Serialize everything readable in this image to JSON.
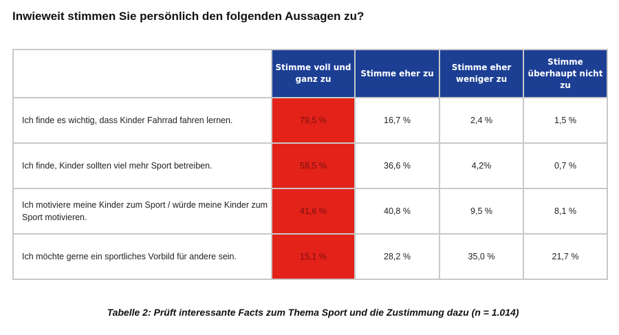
{
  "title": "Inwieweit stimmen Sie persönlich den folgenden Aussagen zu?",
  "columns": [
    "Stimme voll und ganz zu",
    "Stimme eher zu",
    "Stimme eher weniger zu",
    "Stimme überhaupt nicht zu"
  ],
  "rows": [
    {
      "statement": "Ich finde es wichtig, dass Kinder Fahrrad fahren lernen.",
      "values": [
        "79,5 %",
        "16,7 %",
        "2,4 %",
        "1,5 %"
      ]
    },
    {
      "statement": "Ich finde, Kinder sollten viel mehr Sport betreiben.",
      "values": [
        "58,5 %",
        "36,6 %",
        "4,2%",
        "0,7 %"
      ]
    },
    {
      "statement": "Ich motiviere meine Kinder zum Sport / würde meine Kinder zum Sport motivieren.",
      "values": [
        "41,6 %",
        "40,8 %",
        "9,5 %",
        "8,1 %"
      ]
    },
    {
      "statement": "Ich möchte gerne ein sportliches Vorbild für andere sein.",
      "values": [
        "15,1 %",
        "28,2 %",
        "35,0 %",
        "21,7 %"
      ]
    }
  ],
  "colors": {
    "header": "#1c3f94",
    "highlight": "#e32219"
  },
  "caption": "Tabelle 2: Prüft interessante Facts zum Thema Sport und die Zustimmung dazu (n = 1.014)"
}
